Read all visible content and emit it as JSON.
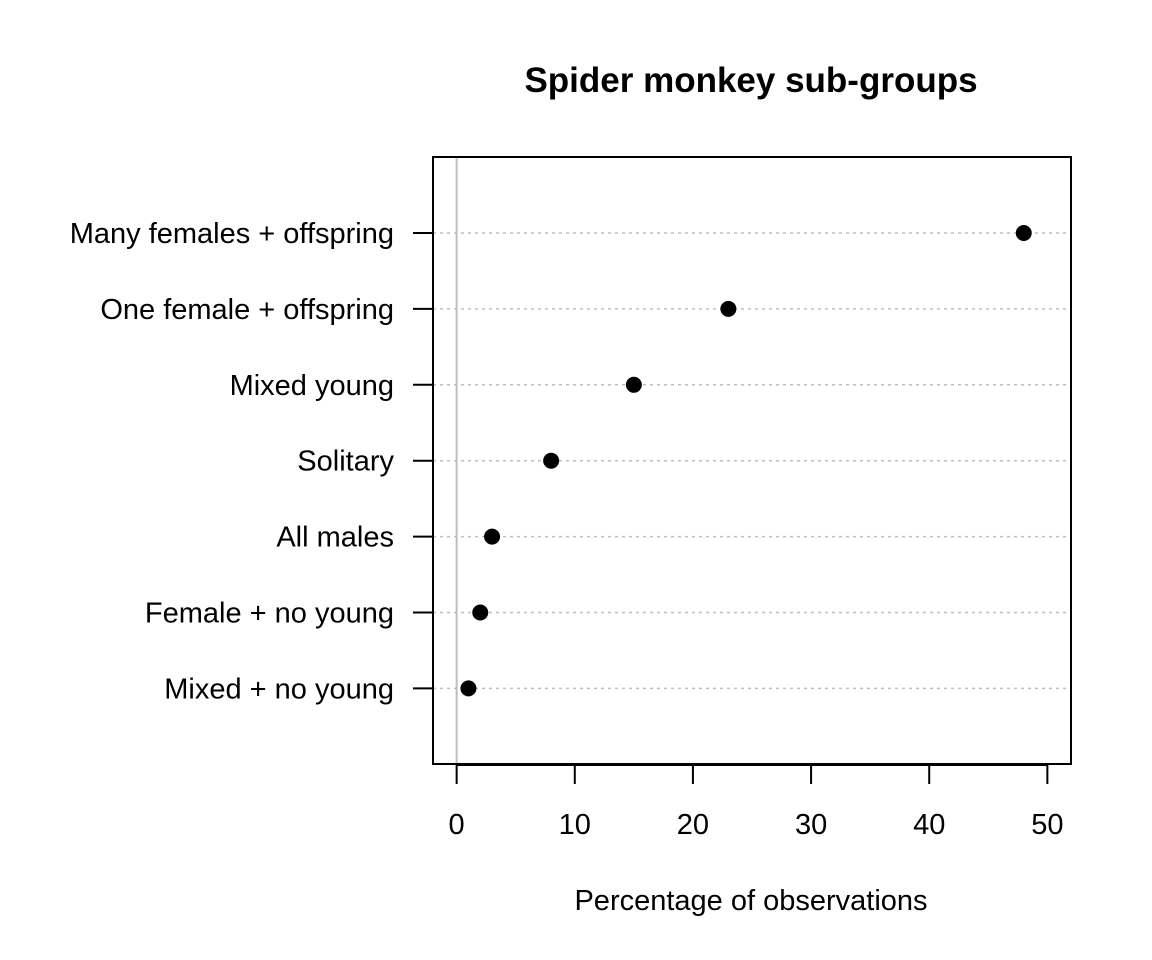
{
  "chart_data": {
    "type": "scatter",
    "title": "Spider monkey sub-groups",
    "xlabel": "Percentage of observations",
    "ylabel": "",
    "xlim": [
      -2,
      52
    ],
    "x_ticks": [
      0,
      10,
      20,
      30,
      40,
      50
    ],
    "x_tick_labels": [
      "0",
      "10",
      "20",
      "30",
      "40",
      "50"
    ],
    "reference_line_x": 0,
    "grid": "dotted horizontal guide per category",
    "categories": [
      "Many females + offspring",
      "One female + offspring",
      "Mixed young",
      "Solitary",
      "All males",
      "Female + no young",
      "Mixed + no young"
    ],
    "values": [
      48,
      23,
      15,
      8,
      3,
      2,
      1
    ]
  },
  "colors": {
    "point": "#000000",
    "guide_line": "#bebebe",
    "reference_line": "#bebebe",
    "axis": "#000000"
  }
}
